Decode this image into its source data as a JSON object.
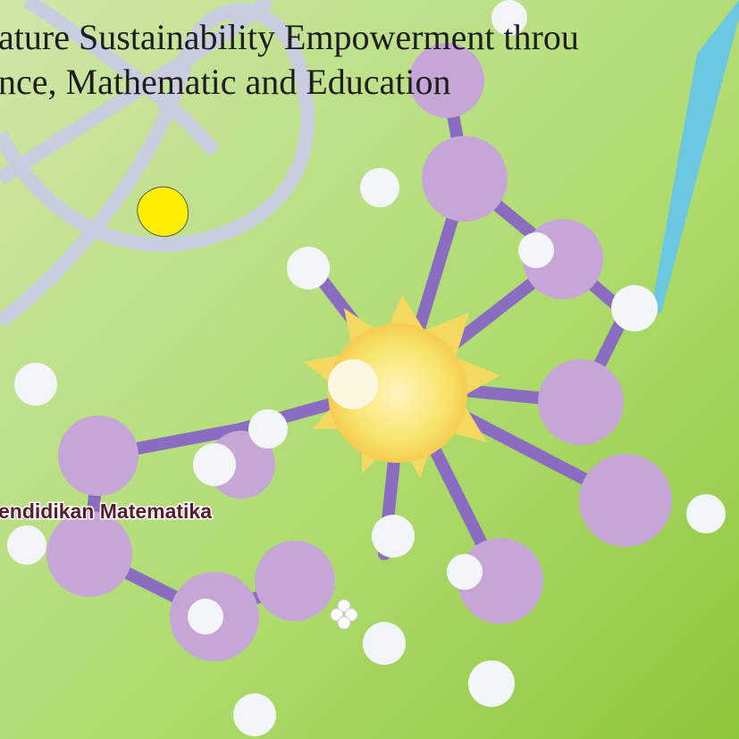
{
  "title": {
    "line1": "ature Sustainability Empowerment throu",
    "line2": "nce, Mathematic and Education"
  },
  "subtitle": "endidikan Matematika"
}
